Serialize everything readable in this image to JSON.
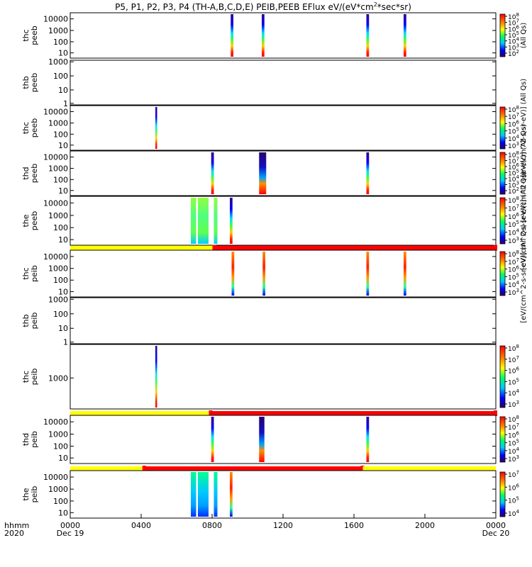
{
  "chart_data": {
    "type": "heatmap",
    "title": "P5, P1, P2, P3, P4 (TH-A,B,C,D,E) PEIB,PEEB EFlux eV/(eV*cm",
    "title_sup": "2",
    "title_tail": "*sec*sr)",
    "x_axis": {
      "corner_labels": [
        "hhmm",
        "2020"
      ],
      "range_hours": [
        0,
        24
      ],
      "ticks": [
        {
          "hour": 0,
          "label": "0000",
          "sub": "Dec 19"
        },
        {
          "hour": 4,
          "label": "0400",
          "sub": ""
        },
        {
          "hour": 8,
          "label": "0800",
          "sub": ""
        },
        {
          "hour": 12,
          "label": "1200",
          "sub": ""
        },
        {
          "hour": 16,
          "label": "1600",
          "sub": ""
        },
        {
          "hour": 20,
          "label": "2000",
          "sub": ""
        },
        {
          "hour": 24,
          "label": "0000",
          "sub": "Dec 20"
        }
      ]
    },
    "colorbar_labels": [
      "(All Qs)",
      "[eV/(cm^2-s-sr-eV)] (All Qs)",
      "[eV/(cm^2-s-sr-eV)] (All Qs)",
      "[eV/(cm^2-s-sr-eV)] (All Qs)",
      "[eV/(cm^2-s-sr-eV)] (All Qs)"
    ],
    "panels": [
      {
        "kind": "spec",
        "ylabel": [
          "thc",
          "peeb"
        ],
        "yticks": [
          "10000",
          "1000",
          "100",
          "10"
        ],
        "colorbar": [
          "10^8",
          "10^7",
          "10^6",
          "10^5",
          "10^4",
          "10^3",
          "10^2"
        ],
        "bursts": [
          {
            "start": 9.05,
            "end": 9.2,
            "profile": "full"
          },
          {
            "start": 10.8,
            "end": 10.95,
            "profile": "full"
          },
          {
            "start": 16.7,
            "end": 16.85,
            "profile": "full"
          },
          {
            "start": 18.8,
            "end": 18.95,
            "profile": "full"
          }
        ]
      },
      {
        "kind": "empty",
        "ylabel": [
          "thb",
          "peeb"
        ],
        "yticks": [
          "1000",
          "100",
          "10",
          "1"
        ]
      },
      {
        "kind": "spec",
        "ylabel": [
          "thc",
          "peeb"
        ],
        "yticks": [
          "10000",
          "1000",
          "100",
          "10"
        ],
        "colorbar": [
          "10^8",
          "10^7",
          "10^6",
          "10^5",
          "10^4",
          "10^3"
        ],
        "bursts": [
          {
            "start": 4.8,
            "end": 4.9,
            "profile": "full"
          }
        ]
      },
      {
        "kind": "spec",
        "ylabel": [
          "thd",
          "peeb"
        ],
        "yticks": [
          "10000",
          "1000",
          "100",
          "10"
        ],
        "colorbar": [
          "10^8",
          "10^7",
          "10^6",
          "10^5",
          "10^4",
          "10^3",
          "10^2"
        ],
        "bursts": [
          {
            "start": 7.95,
            "end": 8.1,
            "profile": "full"
          },
          {
            "start": 10.65,
            "end": 11.05,
            "profile": "wide"
          },
          {
            "start": 16.7,
            "end": 16.85,
            "profile": "full"
          }
        ]
      },
      {
        "kind": "spec",
        "ylabel": [
          "the",
          "peeb"
        ],
        "yticks": [
          "10000",
          "1000",
          "100",
          "10"
        ],
        "colorbar": [
          "10^8",
          "10^7",
          "10^6",
          "10^5",
          "10^4",
          "10^3"
        ],
        "bursts": [
          {
            "start": 6.8,
            "end": 7.1,
            "profile": "green"
          },
          {
            "start": 7.2,
            "end": 7.8,
            "profile": "green"
          },
          {
            "start": 8.1,
            "end": 8.3,
            "profile": "green"
          },
          {
            "start": 9.0,
            "end": 9.15,
            "profile": "full"
          }
        ]
      },
      {
        "kind": "bar",
        "segments": [
          {
            "start": 0,
            "end": 8.1,
            "state": "yellow"
          },
          {
            "start": 8.1,
            "end": 24,
            "state": "red"
          }
        ]
      },
      {
        "kind": "spec",
        "ylabel": [
          "thc",
          "peib"
        ],
        "yticks": [
          "10000",
          "1000",
          "100",
          "10"
        ],
        "colorbar": [
          "10^8",
          "10^7",
          "10^6",
          "10^5",
          "10^4",
          "10^3"
        ],
        "bursts": [
          {
            "start": 9.1,
            "end": 9.25,
            "profile": "hot"
          },
          {
            "start": 10.85,
            "end": 11.0,
            "profile": "hot"
          },
          {
            "start": 16.7,
            "end": 16.85,
            "profile": "hot"
          },
          {
            "start": 18.8,
            "end": 18.95,
            "profile": "hot"
          }
        ]
      },
      {
        "kind": "empty",
        "ylabel": [
          "thb",
          "peib"
        ],
        "yticks": [
          "1000",
          "100",
          "10",
          "1"
        ]
      },
      {
        "kind": "spec",
        "ylabel": [
          "thc",
          "peib"
        ],
        "yticks": [
          "1000"
        ],
        "colorbar": [
          "10^8",
          "10^7",
          "10^6",
          "10^5",
          "10^4",
          "10^3"
        ],
        "bursts": [
          {
            "start": 4.8,
            "end": 4.9,
            "profile": "full"
          }
        ]
      },
      {
        "kind": "bar",
        "segments": [
          {
            "start": 0,
            "end": 7.9,
            "state": "yellow"
          },
          {
            "start": 7.9,
            "end": 24,
            "state": "red"
          }
        ]
      },
      {
        "kind": "spec",
        "ylabel": [
          "thd",
          "peib"
        ],
        "yticks": [
          "10000",
          "1000",
          "100",
          "10"
        ],
        "colorbar": [
          "10^8",
          "10^7",
          "10^6",
          "10^5",
          "10^4",
          "10^3"
        ],
        "bursts": [
          {
            "start": 7.95,
            "end": 8.1,
            "profile": "full"
          },
          {
            "start": 10.65,
            "end": 10.95,
            "profile": "wide"
          },
          {
            "start": 16.7,
            "end": 16.85,
            "profile": "full"
          }
        ]
      },
      {
        "kind": "bar",
        "segments": [
          {
            "start": 0,
            "end": 4.15,
            "state": "yellow"
          },
          {
            "start": 4.15,
            "end": 16.5,
            "state": "red"
          },
          {
            "start": 16.5,
            "end": 24,
            "state": "yellow"
          }
        ]
      },
      {
        "kind": "spec",
        "ylabel": [
          "the",
          "peib"
        ],
        "yticks": [
          "10000",
          "1000",
          "100",
          "10"
        ],
        "colorbar": [
          "10^7",
          "10^6",
          "10^5",
          "10^4"
        ],
        "bursts": [
          {
            "start": 6.8,
            "end": 7.1,
            "profile": "cool"
          },
          {
            "start": 7.2,
            "end": 7.8,
            "profile": "cool"
          },
          {
            "start": 8.1,
            "end": 8.3,
            "profile": "cool"
          },
          {
            "start": 9.0,
            "end": 9.15,
            "profile": "hot"
          }
        ]
      }
    ],
    "colors": {
      "yellow": "#ffff00",
      "red": "#ff0000",
      "frame": "#000000"
    }
  }
}
